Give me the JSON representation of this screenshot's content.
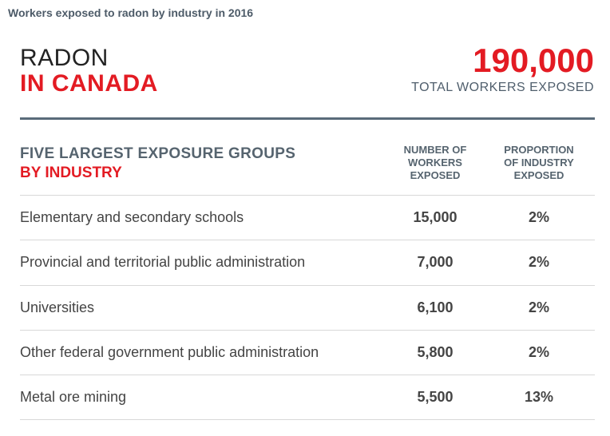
{
  "caption": "Workers exposed to radon by industry in 2016",
  "title": {
    "line1": "RADON",
    "line2": "IN CANADA"
  },
  "total": {
    "value": "190,000",
    "label": "TOTAL WORKERS EXPOSED"
  },
  "section": {
    "line1": "FIVE LARGEST EXPOSURE GROUPS",
    "line2": "BY INDUSTRY"
  },
  "columns": {
    "workers": [
      "NUMBER OF",
      "WORKERS",
      "EXPOSED"
    ],
    "proportion": [
      "PROPORTION",
      "OF INDUSTRY",
      "EXPOSED"
    ]
  },
  "rows": [
    {
      "industry": "Elementary and secondary schools",
      "workers": "15,000",
      "proportion": "2%"
    },
    {
      "industry": "Provincial and territorial public administration",
      "workers": "7,000",
      "proportion": "2%"
    },
    {
      "industry": "Universities",
      "workers": "6,100",
      "proportion": "2%"
    },
    {
      "industry": "Other federal government public administration",
      "workers": "5,800",
      "proportion": "2%"
    },
    {
      "industry": "Metal ore mining",
      "workers": "5,500",
      "proportion": "13%"
    }
  ],
  "colors": {
    "accent": "#e31b23",
    "slate": "#4f5e6c"
  }
}
